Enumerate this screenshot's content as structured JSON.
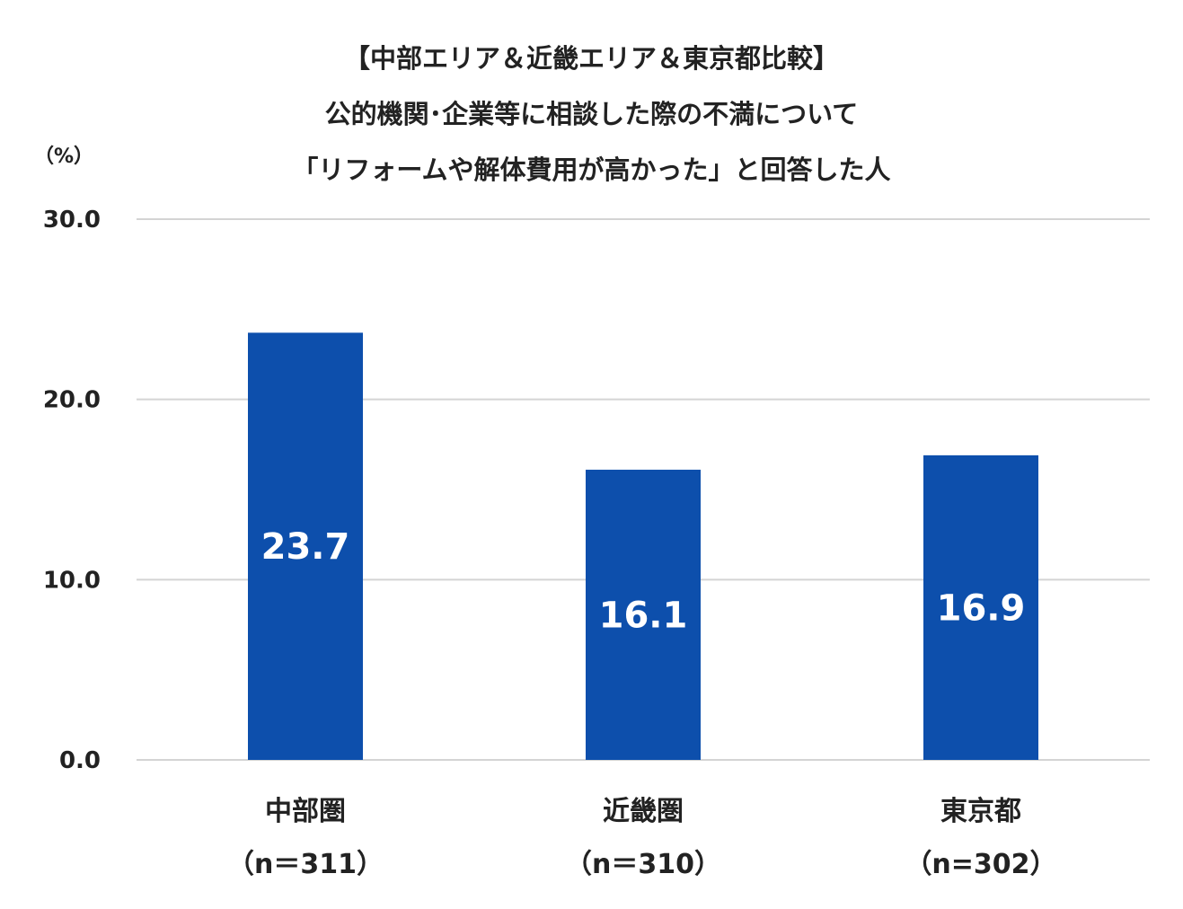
{
  "chart_data": {
    "type": "bar",
    "title_lines": [
      "【中部エリア＆近畿エリア＆東京都比較】",
      "公的機関･企業等に相談した際の不満について",
      "「リフォームや解体費用が高かった」と回答した人"
    ],
    "ylabel": "（%）",
    "categories": [
      "中部圏",
      "近畿圏",
      "東京都"
    ],
    "sample_sizes": [
      "（n＝311）",
      "（n＝310）",
      "（n=302）"
    ],
    "values": [
      23.7,
      16.1,
      16.9
    ],
    "value_labels": [
      "23.7",
      "16.1",
      "16.9"
    ],
    "ylim": [
      0,
      30
    ],
    "yticks": [
      0,
      10,
      20,
      30
    ],
    "ytick_labels": [
      "0.0",
      "10.0",
      "20.0",
      "30.0"
    ],
    "grid": true,
    "legend": "none",
    "bar_color": "#0d4fac",
    "grid_color": "#d4d4d4"
  }
}
